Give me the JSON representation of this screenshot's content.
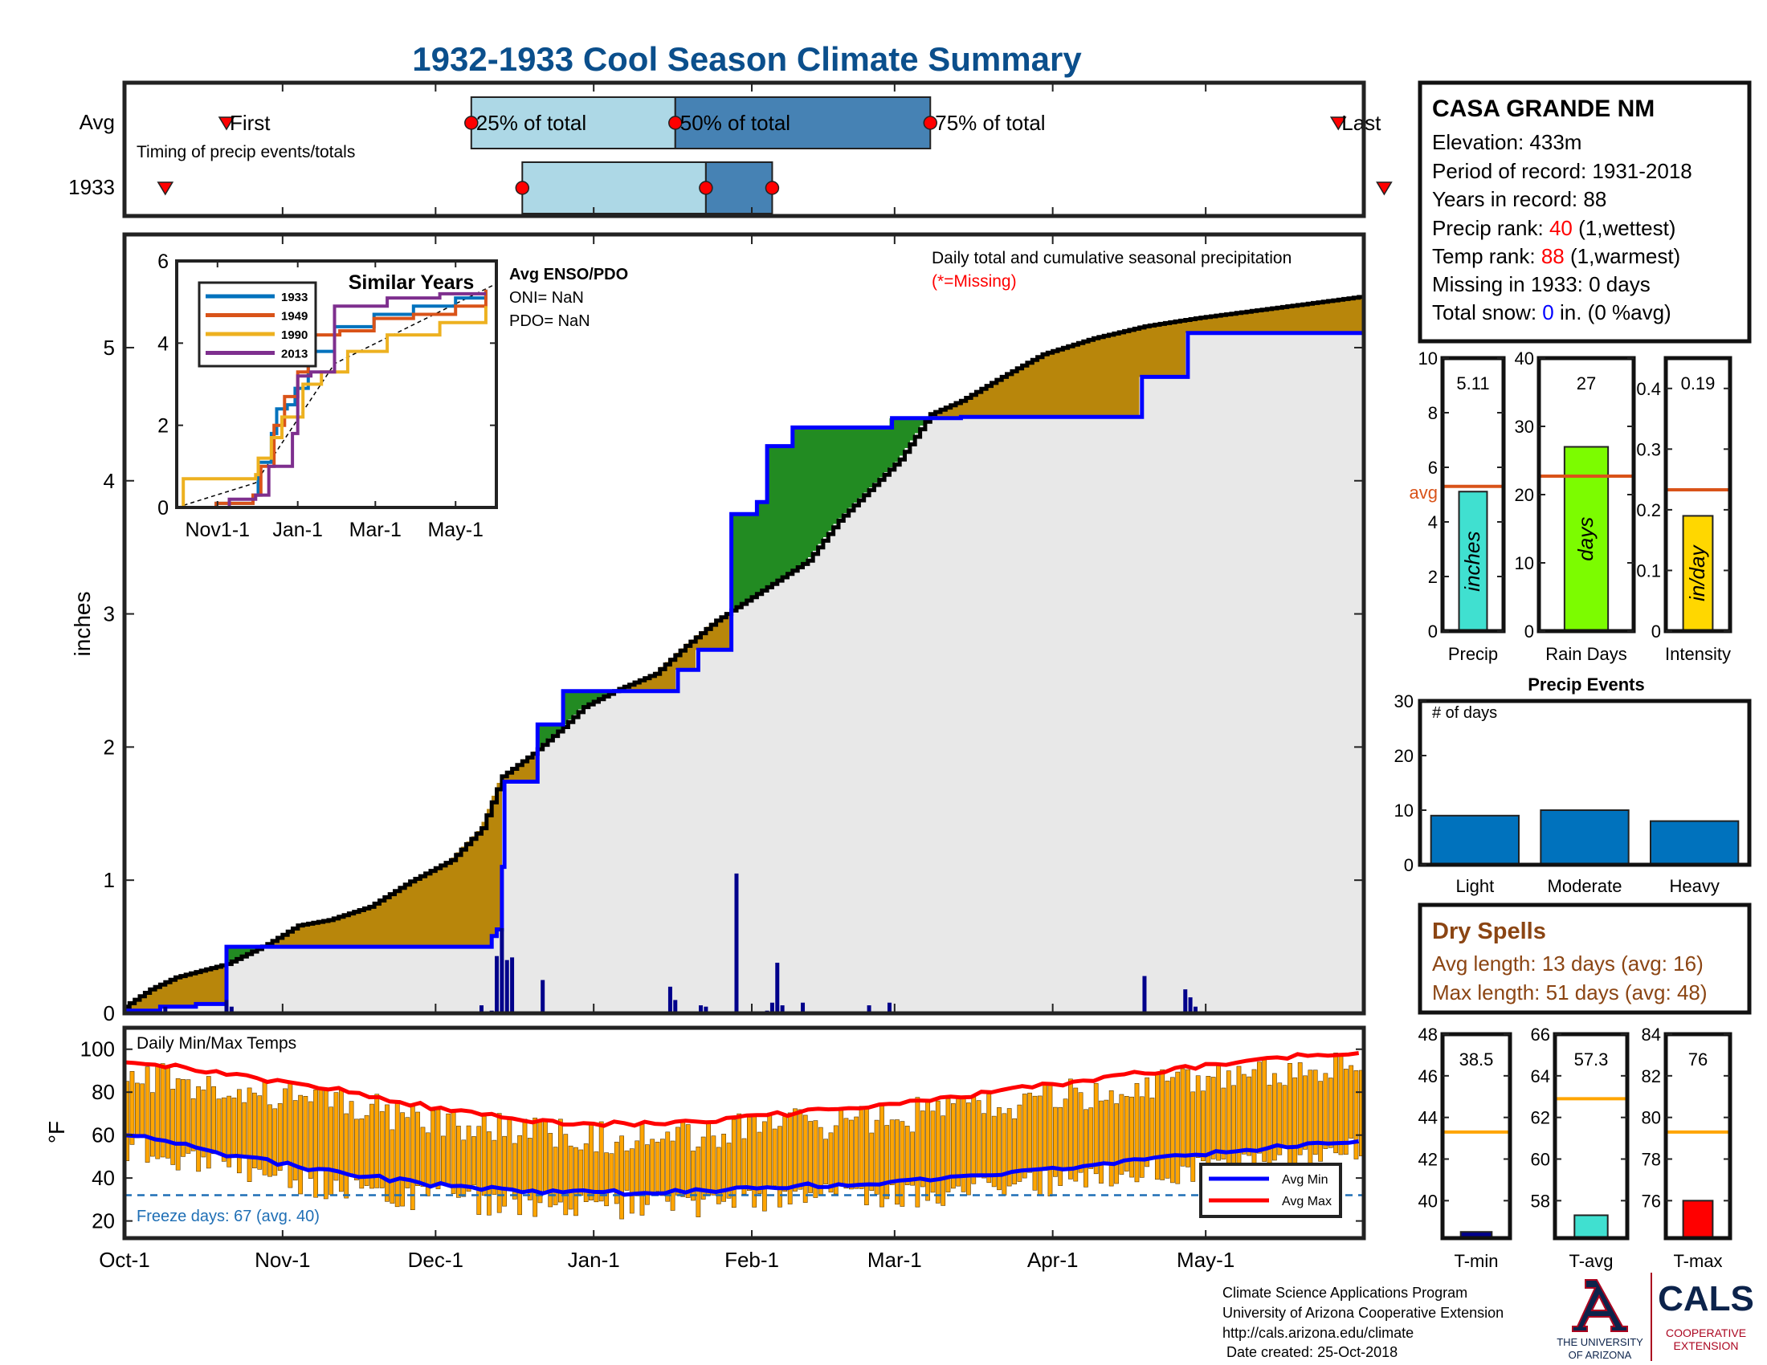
{
  "title": "1932-1933 Cool Season Climate Summary",
  "timing": {
    "row_labels": [
      "Avg",
      "1933"
    ],
    "note": "Timing of precip events/totals",
    "label_first": "First",
    "label_last": "Last",
    "label_25": "25% of total",
    "label_50": "50% of total",
    "label_75": "75% of total",
    "avg": {
      "first": 20,
      "p25": 68,
      "p50": 108,
      "p75": 158,
      "last": 238
    },
    "y1933": {
      "first": 8,
      "p25": 78,
      "p50": 114,
      "p75": 127,
      "last": 247
    },
    "light_color": "#add8e6",
    "dark_color": "#4682b4",
    "marker_color": "#ff0000"
  },
  "main": {
    "ylabel": "inches",
    "yticks": [
      0,
      1,
      2,
      3,
      4,
      5
    ],
    "note_line1": "Daily total and cumulative seasonal precipitation",
    "note_line2": "(*=Missing)",
    "colors": {
      "above": "#228b22",
      "below": "#b8860b",
      "fill": "#e8e8e8",
      "current": "#000000",
      "avg": "#0000ff",
      "bars": "#00008b"
    }
  },
  "inset": {
    "title": "Similar Years",
    "yticks": [
      0,
      2,
      4,
      6
    ],
    "xticks": [
      "Nov1-1",
      "Jan-1",
      "Mar-1",
      "May-1"
    ],
    "legend": [
      "1933",
      "1949",
      "1990",
      "2013"
    ],
    "series_colors": [
      "#0072bd",
      "#d95319",
      "#edb120",
      "#7e2f8e"
    ],
    "enso_title": "Avg ENSO/PDO",
    "oni": "ONI= NaN",
    "pdo": "PDO= NaN"
  },
  "temps": {
    "label": "Daily Min/Max Temps",
    "ylabel": "°F",
    "yticks": [
      20,
      40,
      60,
      80,
      100
    ],
    "freeze_text": "Freeze days: 67 (avg. 40)",
    "freeze_line": 32,
    "legend": [
      "Avg Min",
      "Avg Max"
    ],
    "bar_color": "#ffa500"
  },
  "xaxis": {
    "labels": [
      "Oct-1",
      "Nov-1",
      "Dec-1",
      "Jan-1",
      "Feb-1",
      "Mar-1",
      "Apr-1",
      "May-1"
    ],
    "days": [
      0,
      31,
      61,
      92,
      123,
      151,
      182,
      212
    ]
  },
  "station": {
    "name": "CASA GRANDE NM",
    "elevation": "Elevation: 433m",
    "period": "Period of record: 1931-2018",
    "years": "Years in record: 88",
    "precip_rank_label": "Precip rank: ",
    "precip_rank_value": "40",
    "precip_rank_suffix": " (1,wettest)",
    "temp_rank_label": "Temp rank: ",
    "temp_rank_value": "88",
    "temp_rank_suffix": " (1,warmest)",
    "missing": "Missing in 1933: 0 days",
    "snow_label": "Total snow: ",
    "snow_value": "0",
    "snow_suffix": " in. (0 %avg)"
  },
  "precip_stats": [
    {
      "name": "Precip",
      "value": 5.11,
      "value_text": "5.11",
      "unit": "inches",
      "avg": 5.3,
      "ylim": [
        0,
        10
      ],
      "yticks": [
        0,
        2,
        4,
        6,
        8,
        10
      ],
      "color": "#40e0d0",
      "avg_label": "avg"
    },
    {
      "name": "Rain Days",
      "value": 27,
      "value_text": "27",
      "unit": "days",
      "avg": 22.7,
      "ylim": [
        0,
        40
      ],
      "yticks": [
        0,
        10,
        20,
        30,
        40
      ],
      "color": "#7cfc00"
    },
    {
      "name": "Intensity",
      "value": 0.19,
      "value_text": "0.19",
      "unit": "in/day",
      "avg": 0.233,
      "ylim": [
        0,
        0.45
      ],
      "yticks": [
        0,
        0.1,
        0.2,
        0.3,
        0.4
      ],
      "color": "#ffd700"
    }
  ],
  "events": {
    "title": "Precip Events",
    "ylabel_note": "# of days",
    "categories": [
      "Light",
      "Moderate",
      "Heavy"
    ],
    "values": [
      9,
      10,
      8
    ],
    "yticks": [
      0,
      10,
      20,
      30
    ],
    "color": "#0072bd"
  },
  "dry": {
    "title": "Dry Spells",
    "avg_line": "Avg length: 13 days (avg: 16)",
    "max_line": "Max length: 51 days (avg: 48)",
    "color": "#8b4513"
  },
  "temp_stats": [
    {
      "name": "T-min",
      "value": 38.5,
      "value_text": "38.5",
      "avg": 43.3,
      "ylim": [
        38.2,
        48
      ],
      "yticks": [
        40,
        42,
        44,
        46,
        48
      ],
      "color": "#00008b"
    },
    {
      "name": "T-avg",
      "value": 57.3,
      "value_text": "57.3",
      "avg": 62.9,
      "ylim": [
        56.2,
        66
      ],
      "yticks": [
        58,
        60,
        62,
        64,
        66
      ],
      "color": "#40e0d0"
    },
    {
      "name": "T-max",
      "value": 76,
      "value_text": "76",
      "avg": 79.3,
      "ylim": [
        74.2,
        84
      ],
      "yticks": [
        76,
        78,
        80,
        82,
        84
      ],
      "color": "#ff0000"
    }
  ],
  "footer": {
    "line1": "Climate Science Applications Program",
    "line2": "University of Arizona Cooperative Extension",
    "line3": "http://cals.arizona.edu/climate",
    "line4": " Date created: 25-Oct-2018",
    "ua_line1": "THE UNIVERSITY",
    "ua_line2": "OF ARIZONA",
    "cals": "CALS",
    "coop1": "COOPERATIVE",
    "coop2": "EXTENSION"
  },
  "chart_data": [
    {
      "type": "area",
      "title": "Daily total and cumulative seasonal precipitation",
      "ylabel": "inches",
      "ylim": [
        0,
        5.85
      ],
      "x_is_days_after": "Oct-1",
      "cumulative_1933": {
        "x": [
          0,
          5,
          10,
          20,
          28,
          34,
          40,
          48,
          56,
          64,
          70,
          74,
          80,
          86,
          90,
          96,
          104,
          110,
          116,
          120,
          126,
          134,
          140,
          146,
          152,
          158,
          164,
          172,
          180,
          190,
          200,
          210,
          222,
          234,
          242
        ],
        "y": [
          0.05,
          0.18,
          0.27,
          0.37,
          0.52,
          0.66,
          0.7,
          0.8,
          0.99,
          1.15,
          1.39,
          1.78,
          1.95,
          2.15,
          2.3,
          2.42,
          2.55,
          2.76,
          2.95,
          3.05,
          3.2,
          3.4,
          3.7,
          3.93,
          4.16,
          4.5,
          4.6,
          4.78,
          4.95,
          5.07,
          5.16,
          5.22,
          5.28,
          5.34,
          5.38
        ]
      },
      "cumulative_avg": {
        "x": [
          0,
          7,
          14,
          20,
          70,
          72,
          73,
          74,
          74.5,
          79,
          81,
          86,
          108,
          108.5,
          112,
          112.5,
          113,
          119,
          119.5,
          124,
          125.5,
          126,
          130.5,
          131,
          150,
          150.5,
          164,
          181,
          199,
          199.5,
          208,
          208.5,
          242
        ],
        "y": [
          0.02,
          0.05,
          0.07,
          0.5,
          0.5,
          0.58,
          0.63,
          1.1,
          1.74,
          1.74,
          2.17,
          2.42,
          2.42,
          2.58,
          2.58,
          2.73,
          2.73,
          3.75,
          3.75,
          3.84,
          3.84,
          4.26,
          4.26,
          4.4,
          4.4,
          4.47,
          4.48,
          4.48,
          4.48,
          4.78,
          4.78,
          5.11,
          5.11
        ]
      },
      "daily_bars": {
        "x": [
          8,
          20,
          21,
          70,
          72,
          73,
          74,
          75,
          76,
          82,
          107,
          108,
          113,
          114,
          120,
          126,
          127,
          128,
          129,
          133,
          146,
          150,
          200,
          208,
          209,
          210
        ],
        "y": [
          0.05,
          0.1,
          0.05,
          0.06,
          0.02,
          0.43,
          0.64,
          0.4,
          0.42,
          0.25,
          0.2,
          0.1,
          0.06,
          0.05,
          1.05,
          0.02,
          0.08,
          0.38,
          0.06,
          0.08,
          0.06,
          0.08,
          0.28,
          0.18,
          0.12,
          0.05
        ]
      }
    },
    {
      "type": "line",
      "title": "Similar Years",
      "ylim": [
        0,
        6
      ],
      "series": [
        {
          "name": "1933",
          "x": [
            0,
            30,
            58,
            62,
            72,
            76,
            84,
            90,
            100,
            120,
            150,
            180,
            212,
            235
          ],
          "y": [
            0,
            0.1,
            0.3,
            1.1,
            1.8,
            2.4,
            2.5,
            2.9,
            3.8,
            4.4,
            4.7,
            4.9,
            5.1,
            5.3
          ]
        },
        {
          "name": "1949",
          "x": [
            0,
            30,
            58,
            64,
            74,
            82,
            92,
            100,
            124,
            150,
            180,
            212,
            235
          ],
          "y": [
            0,
            0.1,
            0.3,
            1.0,
            2.0,
            2.7,
            3.3,
            4.2,
            4.3,
            4.6,
            4.7,
            4.9,
            5.3
          ]
        },
        {
          "name": "1990",
          "x": [
            0,
            5,
            60,
            62,
            72,
            80,
            96,
            110,
            130,
            160,
            200,
            235
          ],
          "y": [
            0,
            0.7,
            0.8,
            1.2,
            1.7,
            2.2,
            3.0,
            3.3,
            3.8,
            4.2,
            4.5,
            4.9
          ]
        },
        {
          "name": "2013",
          "x": [
            0,
            40,
            60,
            70,
            88,
            92,
            102,
            120,
            160,
            200,
            235
          ],
          "y": [
            0,
            0.2,
            0.3,
            1.0,
            1.8,
            3.2,
            3.3,
            4.9,
            5.1,
            5.2,
            5.2
          ]
        }
      ]
    },
    {
      "type": "bar",
      "title": "Daily Min/Max Temps",
      "ylim": [
        12,
        110
      ],
      "avg_min": {
        "x": [
          0,
          10,
          20,
          40,
          60,
          80,
          92,
          110,
          130,
          150,
          170,
          190,
          210,
          230,
          242
        ],
        "y": [
          61,
          57,
          51,
          43,
          37,
          34,
          33,
          34,
          36,
          38,
          41,
          46,
          51,
          55,
          58
        ]
      },
      "avg_max": {
        "x": [
          0,
          10,
          20,
          40,
          60,
          80,
          92,
          110,
          130,
          150,
          170,
          190,
          210,
          230,
          242
        ],
        "y": [
          95,
          92,
          88,
          82,
          73,
          67,
          65,
          66,
          70,
          74,
          80,
          86,
          92,
          97,
          99
        ]
      },
      "freeze_days": 67,
      "freeze_days_avg": 40
    },
    {
      "type": "bar",
      "title": "Precip Events",
      "categories": [
        "Light",
        "Moderate",
        "Heavy"
      ],
      "values": [
        9,
        10,
        8
      ],
      "ylim": [
        0,
        30
      ]
    },
    {
      "type": "bar",
      "categories": [
        "Precip",
        "Rain Days",
        "Intensity"
      ],
      "values": [
        5.11,
        27,
        0.19
      ]
    },
    {
      "type": "bar",
      "categories": [
        "T-min",
        "T-avg",
        "T-max"
      ],
      "values": [
        38.5,
        57.3,
        76
      ]
    }
  ]
}
